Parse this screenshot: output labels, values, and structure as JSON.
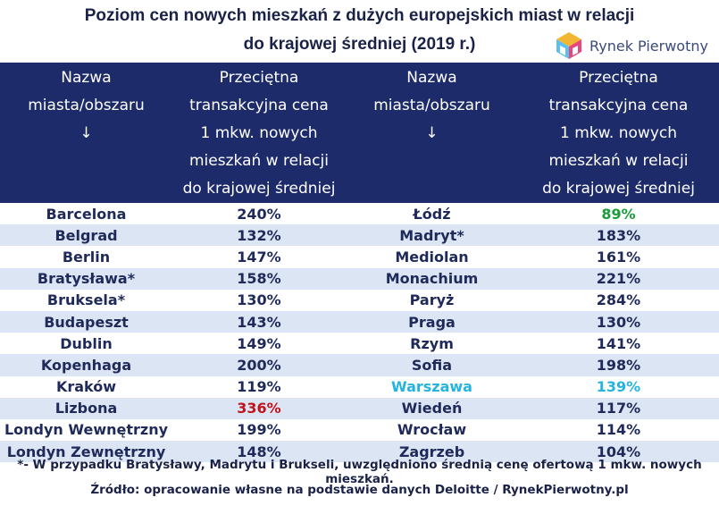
{
  "title_line1": "Poziom cen nowych mieszkań z dużych europejskich miast w relacji",
  "title_line2": "do krajowej średniej (2019 r.)",
  "logo_text": "Rynek Pierwotny",
  "headers": {
    "city_l1": "Nazwa",
    "city_l2": "miasta/obszaru",
    "arrow": "↓",
    "price_l1": "Przeciętna",
    "price_l2": "transakcyjna cena",
    "price_l3": "1 mkw. nowych",
    "price_l4": "mieszkań w relacji",
    "price_l5": "do krajowej średniej"
  },
  "colors": {
    "header_bg": "#1d2b6b",
    "stripe": "#dce5f3",
    "text": "#1f2a5a",
    "highlight_red": "#c0141e",
    "highlight_green": "#1a9c3a",
    "highlight_cyan": "#25b4e0"
  },
  "chart_data": {
    "type": "table",
    "title": "Poziom cen nowych mieszkań z dużych europejskich miast w relacji do krajowej średniej (2019 r.)",
    "columns": [
      "Nazwa miasta/obszaru",
      "Przeciętna transakcyjna cena 1 mkw. nowych mieszkań w relacji do krajowej średniej"
    ],
    "left": [
      {
        "city": "Barcelona",
        "value": "240%"
      },
      {
        "city": "Belgrad",
        "value": "132%"
      },
      {
        "city": "Berlin",
        "value": "147%"
      },
      {
        "city": "Bratysława*",
        "value": "158%"
      },
      {
        "city": "Bruksela*",
        "value": "130%"
      },
      {
        "city": "Budapeszt",
        "value": "143%"
      },
      {
        "city": "Dublin",
        "value": "149%"
      },
      {
        "city": "Kopenhaga",
        "value": "200%"
      },
      {
        "city": "Kraków",
        "value": "119%"
      },
      {
        "city": "Lizbona",
        "value": "336%",
        "highlight": "red"
      },
      {
        "city": "Londyn Wewnętrzny",
        "value": "199%"
      },
      {
        "city": "Londyn Zewnętrzny",
        "value": "148%"
      }
    ],
    "right": [
      {
        "city": "Łódź",
        "value": "89%",
        "highlight": "green"
      },
      {
        "city": "Madryt*",
        "value": "183%"
      },
      {
        "city": "Mediolan",
        "value": "161%"
      },
      {
        "city": "Monachium",
        "value": "221%"
      },
      {
        "city": "Paryż",
        "value": "284%"
      },
      {
        "city": "Praga",
        "value": "130%"
      },
      {
        "city": "Rzym",
        "value": "141%"
      },
      {
        "city": "Sofia",
        "value": "198%"
      },
      {
        "city": "Warszawa",
        "value": "139%",
        "highlight": "cyan",
        "city_highlight": "cyan"
      },
      {
        "city": "Wiedeń",
        "value": "117%"
      },
      {
        "city": "Wrocław",
        "value": "114%"
      },
      {
        "city": "Zagrzeb",
        "value": "104%"
      }
    ]
  },
  "footnote": "*- W przypadku Bratysławy, Madrytu i Brukseli, uwzględniono średnią cenę ofertową 1 mkw. nowych mieszkań.",
  "source": "Źródło: opracowanie własne na podstawie danych Deloitte / RynekPierwotny.pl"
}
